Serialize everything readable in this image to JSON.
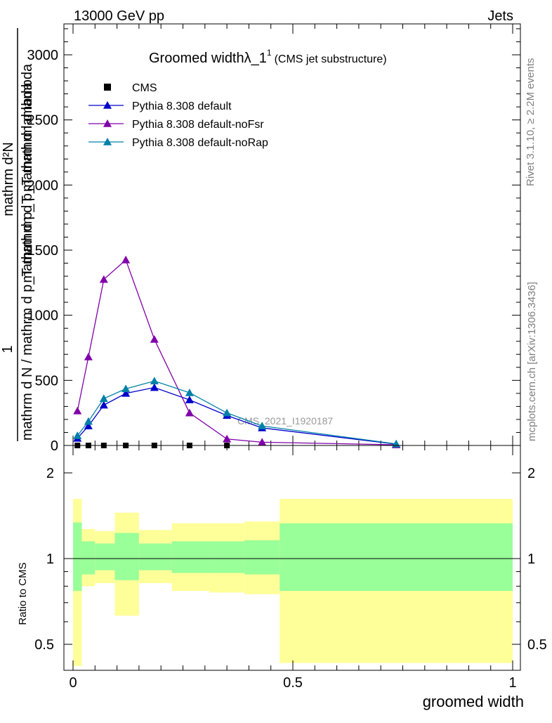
{
  "header": {
    "energy_label": "13000 GeV pp",
    "category_label": "Jets",
    "rivet_label": "Rivet 3.1.10, ≥ 2.2M events",
    "mcplots_label": "mcplots.cern.ch [arXiv:1306.3436]",
    "analysis_id": "CMS_2021_I1920187"
  },
  "main_plot": {
    "title_main": "Groomed width",
    "title_lambda": "λ_1",
    "title_sup": "1",
    "title_paren": "(CMS jet substructure)",
    "ylabel_num": "1",
    "ylabel_den": "mathrm d N / mathrm d p_T mathrm d p_T mathrm d lambda",
    "ylabel_top": "mathrm d²N",
    "ylabel_mid": "mathrm d p_T mathrm d lambda",
    "yticks": [
      "0",
      "500",
      "1000",
      "1500",
      "2000",
      "2500",
      "3000"
    ]
  },
  "legend": [
    {
      "label": "CMS",
      "color": "#000000",
      "marker": "square"
    },
    {
      "label": "Pythia 8.308 default",
      "color": "#0000cc",
      "marker": "triangle"
    },
    {
      "label": "Pythia 8.308 default-noFsr",
      "color": "#8000aa",
      "marker": "triangle"
    },
    {
      "label": "Pythia 8.308 default-noRap",
      "color": "#0080a8",
      "marker": "triangle"
    }
  ],
  "ratio_plot": {
    "ylabel": "Ratio to CMS",
    "yticks": [
      "0.5",
      "1",
      "2"
    ]
  },
  "xaxis": {
    "label": "groomed width",
    "ticks": [
      "0",
      "0.5",
      "1"
    ]
  },
  "chart_data": [
    {
      "type": "line",
      "title": "Groomed width λ_1^1 (CMS jet substructure)",
      "xlabel": "groomed width",
      "ylabel": "1 / (mathrm d N / mathrm d p_T) · mathrm d²N / (mathrm d p_T mathrm d lambda)",
      "xlim": [
        0,
        1
      ],
      "ylim": [
        0,
        3000
      ],
      "grid": false,
      "legend_position": "top-left",
      "series": [
        {
          "name": "CMS",
          "x": [
            0.01,
            0.035,
            0.07,
            0.12,
            0.185,
            0.265,
            0.35
          ],
          "y": [
            0,
            0,
            0,
            0,
            0,
            0,
            0
          ]
        },
        {
          "name": "Pythia 8.308 default",
          "x": [
            0.01,
            0.035,
            0.07,
            0.12,
            0.185,
            0.265,
            0.35,
            0.43,
            0.735
          ],
          "y": [
            55,
            150,
            310,
            400,
            445,
            350,
            230,
            135,
            10
          ]
        },
        {
          "name": "Pythia 8.308 default-noFsr",
          "x": [
            0.01,
            0.035,
            0.07,
            0.12,
            0.185,
            0.265,
            0.35,
            0.43,
            0.735
          ],
          "y": [
            265,
            680,
            1275,
            1425,
            815,
            250,
            50,
            25,
            5
          ]
        },
        {
          "name": "Pythia 8.308 default-noRap",
          "x": [
            0.01,
            0.035,
            0.07,
            0.12,
            0.185,
            0.265,
            0.35,
            0.43,
            0.735
          ],
          "y": [
            75,
            185,
            360,
            435,
            495,
            405,
            250,
            150,
            12
          ]
        }
      ]
    },
    {
      "type": "area",
      "ylabel": "Ratio to CMS",
      "xlabel": "groomed width",
      "xlim": [
        0,
        1
      ],
      "ylim": [
        0.4,
        2.3
      ],
      "scale": "log",
      "reference_line": 1,
      "bins": [
        {
          "x0": 0.0,
          "x1": 0.02,
          "inner": [
            0.77,
            1.34
          ],
          "outer": [
            0.42,
            1.62
          ]
        },
        {
          "x0": 0.02,
          "x1": 0.05,
          "inner": [
            0.88,
            1.15
          ],
          "outer": [
            0.8,
            1.27
          ]
        },
        {
          "x0": 0.05,
          "x1": 0.095,
          "inner": [
            0.91,
            1.13
          ],
          "outer": [
            0.82,
            1.25
          ]
        },
        {
          "x0": 0.095,
          "x1": 0.15,
          "inner": [
            0.84,
            1.23
          ],
          "outer": [
            0.63,
            1.45
          ]
        },
        {
          "x0": 0.15,
          "x1": 0.225,
          "inner": [
            0.91,
            1.13
          ],
          "outer": [
            0.82,
            1.26
          ]
        },
        {
          "x0": 0.225,
          "x1": 0.31,
          "inner": [
            0.89,
            1.15
          ],
          "outer": [
            0.77,
            1.33
          ]
        },
        {
          "x0": 0.31,
          "x1": 0.39,
          "inner": [
            0.89,
            1.15
          ],
          "outer": [
            0.76,
            1.33
          ]
        },
        {
          "x0": 0.39,
          "x1": 0.47,
          "inner": [
            0.88,
            1.16
          ],
          "outer": [
            0.75,
            1.35
          ]
        },
        {
          "x0": 0.47,
          "x1": 1.0,
          "inner": [
            0.77,
            1.33
          ],
          "outer": [
            0.43,
            1.62
          ]
        }
      ],
      "colors": {
        "inner": "#99ff99",
        "outer": "#ffff99"
      }
    }
  ]
}
